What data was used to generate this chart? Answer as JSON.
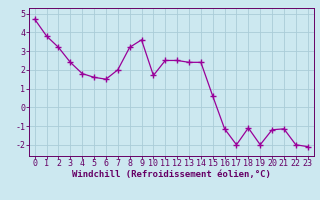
{
  "x": [
    0,
    1,
    2,
    3,
    4,
    5,
    6,
    7,
    8,
    9,
    10,
    11,
    12,
    13,
    14,
    15,
    16,
    17,
    18,
    19,
    20,
    21,
    22,
    23
  ],
  "y": [
    4.7,
    3.8,
    3.2,
    2.4,
    1.8,
    1.6,
    1.5,
    2.0,
    3.2,
    3.6,
    1.7,
    2.5,
    2.5,
    2.4,
    2.4,
    0.6,
    -1.15,
    -2.0,
    -1.1,
    -2.0,
    -1.2,
    -1.15,
    -2.0,
    -2.1
  ],
  "line_color": "#990099",
  "marker": "+",
  "marker_size": 4,
  "marker_color": "#990099",
  "bg_color": "#cce8f0",
  "grid_color": "#aaccd8",
  "xlabel": "Windchill (Refroidissement éolien,°C)",
  "xlabel_color": "#660066",
  "xlabel_fontsize": 6.5,
  "tick_color": "#660066",
  "tick_fontsize": 6,
  "ylim": [
    -2.6,
    5.3
  ],
  "xlim": [
    -0.5,
    23.5
  ],
  "yticks": [
    -2,
    -1,
    0,
    1,
    2,
    3,
    4,
    5
  ],
  "xticks": [
    0,
    1,
    2,
    3,
    4,
    5,
    6,
    7,
    8,
    9,
    10,
    11,
    12,
    13,
    14,
    15,
    16,
    17,
    18,
    19,
    20,
    21,
    22,
    23
  ],
  "spine_color": "#660066",
  "line_width": 0.9
}
